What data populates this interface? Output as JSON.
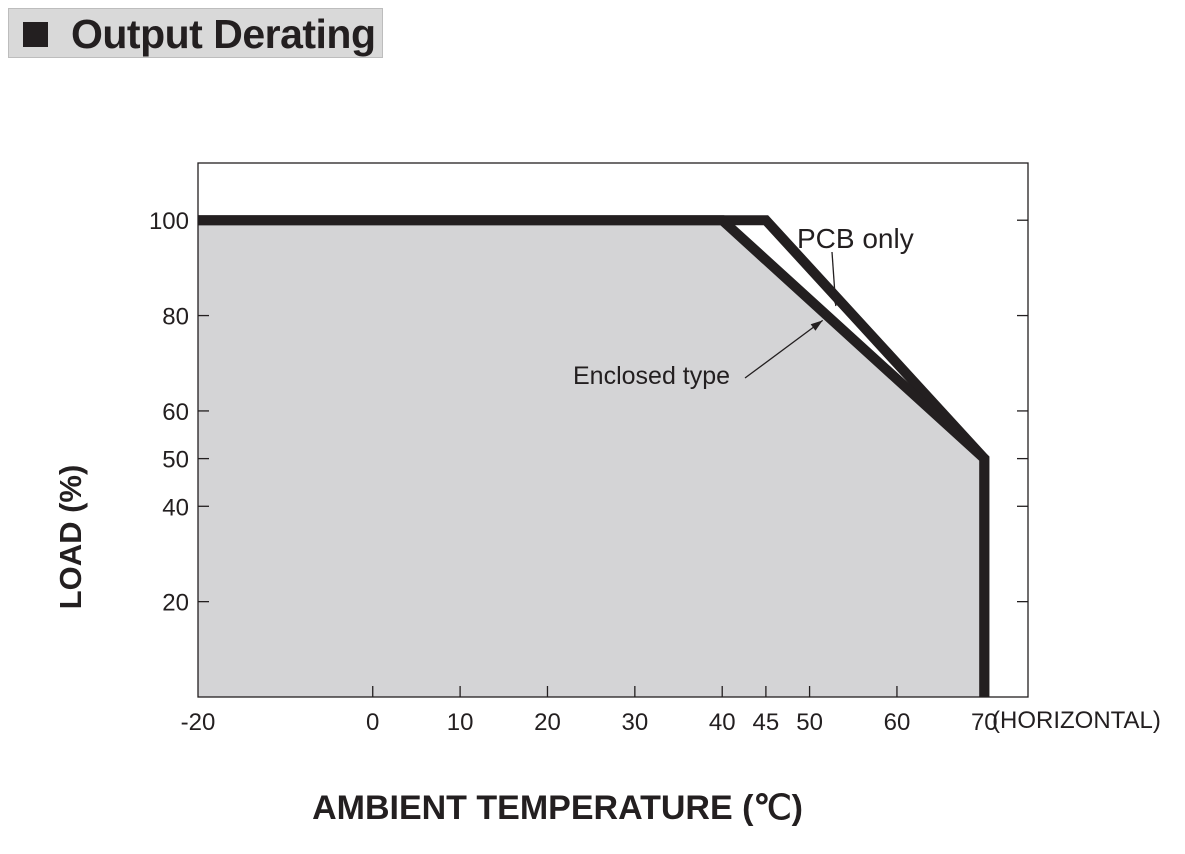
{
  "header": {
    "title": "Output Derating"
  },
  "chart_data": {
    "type": "line",
    "title": "Output Derating",
    "xlabel": "AMBIENT TEMPERATURE (℃)",
    "ylabel": "LOAD (%)",
    "x_note": "(HORIZONTAL)",
    "xlim": [
      -20,
      75
    ],
    "ylim": [
      0,
      112
    ],
    "x_ticks": [
      -20,
      0,
      10,
      20,
      30,
      40,
      45,
      50,
      60,
      70
    ],
    "y_ticks": [
      20,
      40,
      50,
      60,
      80,
      100
    ],
    "shaded_region": "area under Enclosed type curve",
    "series": [
      {
        "name": "PCB only",
        "x": [
          -20,
          45,
          70,
          70
        ],
        "y": [
          100,
          100,
          50,
          0
        ]
      },
      {
        "name": "Enclosed type",
        "x": [
          -20,
          40,
          70,
          70
        ],
        "y": [
          100,
          100,
          50,
          0
        ]
      }
    ],
    "annotations": [
      {
        "text": "PCB only",
        "points_to": [
          53,
          82
        ]
      },
      {
        "text": "Enclosed type",
        "points_to": [
          51.5,
          79
        ]
      }
    ],
    "colors": {
      "line": "#231f20",
      "fill": "#d4d4d6",
      "frame": "#231f20"
    }
  }
}
